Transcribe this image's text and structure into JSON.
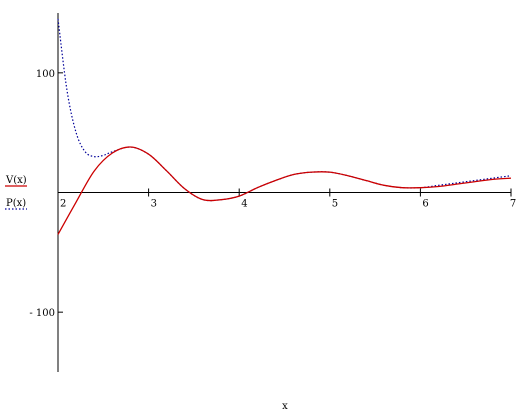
{
  "chart_data": {
    "type": "line",
    "title": "",
    "xlabel": "x",
    "ylabel": "",
    "xlim": [
      2,
      7
    ],
    "ylim": [
      -150,
      150
    ],
    "x_ticks": [
      2,
      3,
      4,
      5,
      6,
      7
    ],
    "x_tick_labels": [
      "2",
      "3",
      "4",
      "5",
      "6",
      "7"
    ],
    "y_ticks": [
      100,
      -100
    ],
    "y_tick_labels": [
      "100",
      "- 100"
    ],
    "grid": false,
    "legend_placement": "left",
    "series": [
      {
        "name": "V(x)",
        "color": "#cc0000",
        "dash": "solid",
        "x": [
          2.0,
          2.2,
          2.4,
          2.6,
          2.8,
          3.0,
          3.2,
          3.4,
          3.6,
          3.8,
          4.0,
          4.2,
          4.4,
          4.6,
          4.8,
          5.0,
          5.2,
          5.4,
          5.6,
          5.8,
          6.0,
          6.2,
          6.4,
          6.6,
          6.8,
          7.0
        ],
        "y": [
          -35,
          -8,
          18,
          33,
          38,
          32,
          18,
          3,
          -6,
          -6,
          -3,
          4,
          10,
          15,
          17,
          17,
          14,
          10,
          6,
          4,
          4,
          5,
          7,
          9,
          11,
          12
        ]
      },
      {
        "name": "P(x)",
        "color": "#000099",
        "dash": "dotted",
        "x": [
          2.0,
          2.1,
          2.2,
          2.3,
          2.4,
          2.5,
          2.6,
          2.8,
          3.0,
          3.2,
          3.4,
          3.6,
          3.8,
          4.0,
          4.2,
          4.4,
          4.6,
          4.8,
          5.0,
          5.2,
          5.4,
          5.6,
          5.8,
          6.0,
          6.2,
          6.4,
          6.6,
          6.8,
          7.0
        ],
        "y": [
          145,
          85,
          50,
          34,
          30,
          31,
          34,
          38,
          32,
          18,
          3,
          -6,
          -6,
          -3,
          4,
          10,
          15,
          17,
          17,
          14,
          10,
          6,
          4,
          4,
          6,
          8,
          10,
          12,
          14
        ]
      }
    ]
  }
}
